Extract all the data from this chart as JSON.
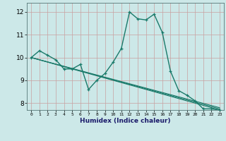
{
  "x": [
    0,
    1,
    2,
    3,
    4,
    5,
    6,
    7,
    8,
    9,
    10,
    11,
    12,
    13,
    14,
    15,
    16,
    17,
    18,
    19,
    20,
    21,
    22,
    23
  ],
  "line1": [
    10.0,
    10.3,
    10.1,
    9.9,
    9.5,
    9.5,
    9.7,
    8.6,
    9.0,
    9.3,
    9.8,
    10.4,
    12.0,
    11.7,
    11.65,
    11.9,
    11.1,
    9.4,
    8.55,
    8.35,
    8.1,
    7.75,
    7.75,
    7.7
  ],
  "trend_lines": [
    [
      10.0,
      7.7
    ],
    [
      10.0,
      7.75
    ],
    [
      10.0,
      7.8
    ]
  ],
  "bg_color": "#cce8e8",
  "grid_color": "#b0c8c8",
  "line_color": "#1a7a6a",
  "xlabel": "Humidex (Indice chaleur)",
  "ylim": [
    7.7,
    12.4
  ],
  "yticks": [
    8,
    9,
    10,
    11,
    12
  ],
  "xlim": [
    -0.5,
    23.5
  ]
}
